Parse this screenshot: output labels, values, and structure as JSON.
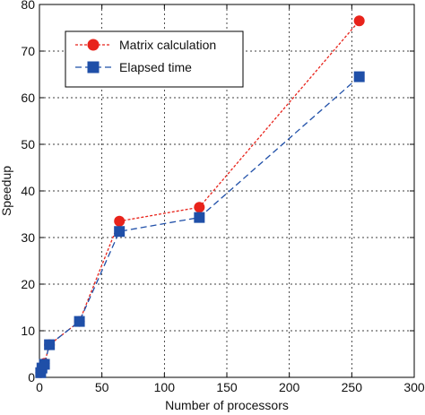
{
  "chart_data": {
    "type": "line",
    "title": "",
    "xlabel": "Number of processors",
    "ylabel": "Speedup",
    "xlim": [
      0,
      300
    ],
    "ylim": [
      0,
      80
    ],
    "x_ticks": [
      0,
      50,
      100,
      150,
      200,
      250,
      300
    ],
    "y_ticks": [
      0,
      10,
      20,
      30,
      40,
      50,
      60,
      70,
      80
    ],
    "grid": true,
    "legend_position": "top-left",
    "series": [
      {
        "name": "Matrix calculation",
        "color": "#e8231b",
        "marker": "circle",
        "line_style": "dotted",
        "x": [
          1,
          2,
          4,
          8,
          32,
          64,
          128,
          256
        ],
        "y": [
          1,
          2,
          3,
          7,
          12,
          33.5,
          36.5,
          76.5
        ]
      },
      {
        "name": "Elapsed time",
        "color": "#1f4fa8",
        "marker": "square",
        "line_style": "dashed",
        "x": [
          1,
          2,
          4,
          8,
          32,
          64,
          128,
          256
        ],
        "y": [
          1,
          2,
          2.8,
          7,
          12,
          31.3,
          34.3,
          64.5
        ]
      }
    ]
  }
}
